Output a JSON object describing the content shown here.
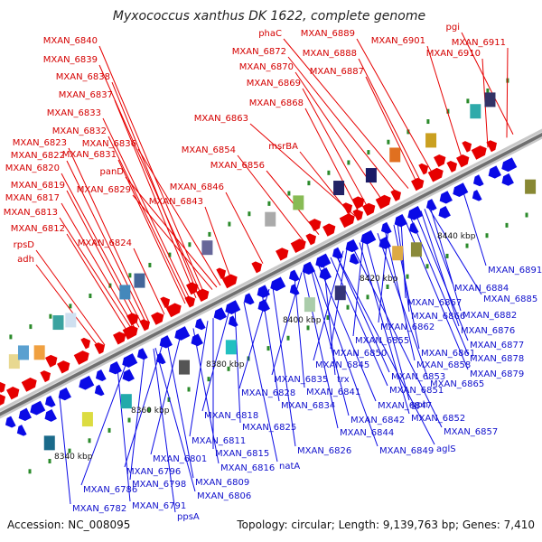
{
  "title": "Myxococcus xanthus DK 1622, complete genome",
  "footer": {
    "accession": "Accession: NC_008095",
    "summary": "Topology: circular; Length: 9,139,763 bp; Genes: 7,410"
  },
  "scale_labels": [
    "8340 kbp",
    "8360 kbp",
    "8380 kbp",
    "8400 kbp",
    "8420 kbp",
    "8440 kbp"
  ],
  "colors": {
    "forward": "#e60000",
    "reverse": "#0a0ae6",
    "backbone": "#8c8c8c"
  },
  "forward_labels": [
    "MXAN_6840",
    "MXAN_6839",
    "MXAN_6838",
    "MXAN_6837",
    "MXAN_6833",
    "MXAN_6832",
    "MXAN_6836",
    "MXAN_6823",
    "MXAN_6831",
    "MXAN_6822",
    "panD",
    "MXAN_6820",
    "MXAN_6829",
    "MXAN_6819",
    "MXAN_6817",
    "MXAN_6813",
    "MXAN_6812",
    "MXAN_6824",
    "rpsD",
    "adh",
    "MXAN_6843",
    "MXAN_6846",
    "MXAN_6854",
    "MXAN_6856",
    "MXAN_6863",
    "msrBA",
    "MXAN_6868",
    "MXAN_6869",
    "MXAN_6870",
    "MXAN_6872",
    "phaC",
    "MXAN_6889",
    "MXAN_6888",
    "MXAN_6887",
    "MXAN_6901",
    "pgi",
    "MXAN_6911",
    "MXAN_6910"
  ],
  "reverse_labels": [
    "MXAN_6891",
    "MXAN_6884",
    "MXAN_6885",
    "MXAN_6867",
    "MXAN_6866",
    "MXAN_6882",
    "MXAN_6862",
    "MXAN_6876",
    "MXAN_6855",
    "MXAN_6877",
    "MXAN_6850",
    "MXAN_6861",
    "MXAN_6878",
    "MXAN_6845",
    "MXAN_6858",
    "MXAN_6879",
    "MXAN_6835",
    "trx",
    "MXAN_6853",
    "MXAN_6828",
    "MXAN_6841",
    "MXAN_6851",
    "MXAN_6865",
    "MXAN_6834",
    "MXAN_6847",
    "gph",
    "MXAN_6818",
    "MXAN_6842",
    "MXAN_6852",
    "MXAN_6825",
    "MXAN_6844",
    "MXAN_6857",
    "MXAN_6811",
    "MXAN_6815",
    "MXAN_6826",
    "MXAN_6849",
    "aglS",
    "MXAN_6801",
    "MXAN_6816",
    "natA",
    "MXAN_6796",
    "MXAN_6809",
    "MXAN_6798",
    "MXAN_6786",
    "MXAN_6806",
    "MXAN_6791",
    "MXAN_6782",
    "ppsA"
  ]
}
